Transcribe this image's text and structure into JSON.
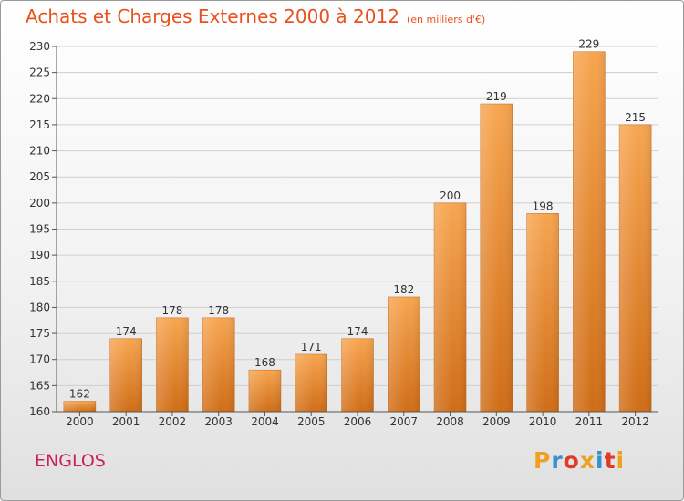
{
  "header": {
    "title": "Achats et Charges Externes 2000 à 2012",
    "subtitle": "(en milliers d'€)"
  },
  "footer": {
    "town": "ENGLOS"
  },
  "logo": {
    "letters": [
      "P",
      "r",
      "o",
      "x",
      "i",
      "t",
      "i"
    ],
    "colors": [
      "#f0a020",
      "#3a8fd0",
      "#e03a2a",
      "#f0a020",
      "#3a8fd0",
      "#e03a2a",
      "#f0a020"
    ]
  },
  "colors": {
    "bar_light": "#f7a550",
    "bar_dark": "#d06d17",
    "title": "#e8501c",
    "town": "#cc2255"
  },
  "chart_data": {
    "type": "bar",
    "title": "Achats et Charges Externes 2000 à 2012",
    "subtitle": "(en milliers d'€)",
    "categories": [
      "2000",
      "2001",
      "2002",
      "2003",
      "2004",
      "2005",
      "2006",
      "2007",
      "2008",
      "2009",
      "2010",
      "2011",
      "2012"
    ],
    "values": [
      162,
      174,
      178,
      178,
      168,
      171,
      174,
      182,
      200,
      219,
      198,
      229,
      215
    ],
    "ylim": [
      160,
      230
    ],
    "yticks": [
      160,
      165,
      170,
      175,
      180,
      185,
      190,
      195,
      200,
      205,
      210,
      215,
      220,
      225,
      230
    ],
    "grid": true,
    "data_labels": true
  }
}
